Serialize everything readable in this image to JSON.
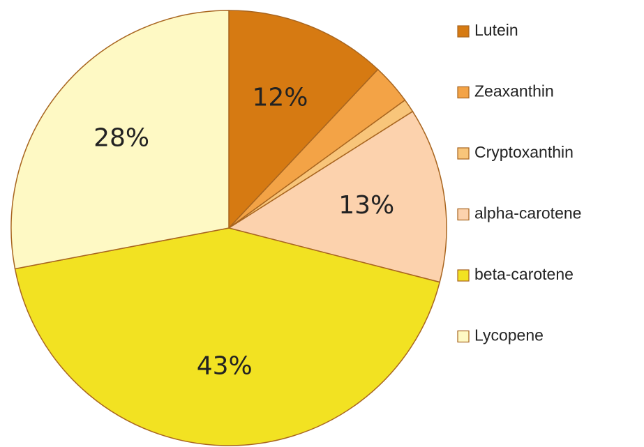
{
  "chart_data": {
    "type": "pie",
    "categories": [
      "Lutein",
      "Zeaxanthin",
      "Cryptoxanthin",
      "alpha-carotene",
      "beta-carotene",
      "Lycopene"
    ],
    "values": [
      12,
      3,
      1,
      13,
      43,
      28
    ],
    "value_labels": [
      "12%",
      null,
      null,
      "13%",
      "43%",
      "28%"
    ],
    "colors": [
      "#d67a12",
      "#f3a346",
      "#f8c57a",
      "#fcd2ad",
      "#f2e222",
      "#fef9c4"
    ],
    "legend": "right"
  }
}
